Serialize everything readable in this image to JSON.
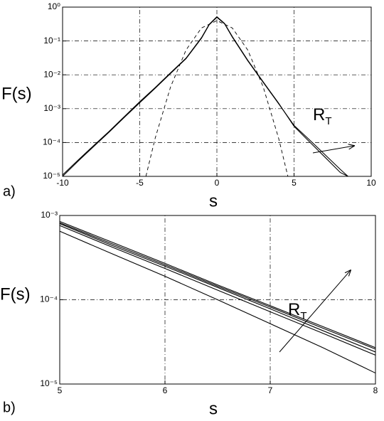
{
  "chart_data": [
    {
      "type": "line",
      "label": "a)",
      "xlabel": "s",
      "ylabel": "F(s)",
      "ylog": true,
      "grid": true,
      "xlim": [
        -10,
        10
      ],
      "xticks": [
        -10,
        -5,
        0,
        5,
        10
      ],
      "ylim": [
        1e-05,
        1
      ],
      "yticks": [
        {
          "value": 1e-05,
          "label": "10⁻⁵"
        },
        {
          "value": 0.0001,
          "label": "10⁻⁴"
        },
        {
          "value": 0.001,
          "label": "10⁻³"
        },
        {
          "value": 0.01,
          "label": "10⁻²"
        },
        {
          "value": 0.1,
          "label": "10⁻¹"
        },
        {
          "value": 1,
          "label": "10⁰"
        }
      ],
      "annotation": {
        "text": "R",
        "subscript": "T"
      },
      "x": [
        -10,
        -9,
        -8,
        -7,
        -6,
        -5,
        -4,
        -3,
        -2,
        -1,
        -0.5,
        0,
        0.5,
        1,
        2,
        3,
        4,
        5,
        6,
        7,
        8,
        8.5
      ],
      "series": [
        {
          "color": "#000000",
          "dash": false,
          "values": [
            1e-05,
            2.8e-05,
            7.5e-05,
            0.0002,
            0.00055,
            0.0015,
            0.004,
            0.011,
            0.03,
            0.12,
            0.3,
            0.5,
            0.32,
            0.13,
            0.026,
            0.006,
            0.0014,
            0.00032,
            0.00012,
            4.4e-05,
            1.6e-05,
            1e-05
          ]
        },
        {
          "color": "#000000",
          "dash": false,
          "values": [
            1.1e-05,
            3e-05,
            8e-05,
            0.00021,
            0.00058,
            0.0016,
            0.0042,
            0.0115,
            0.031,
            0.125,
            0.31,
            0.52,
            0.33,
            0.135,
            0.027,
            0.0062,
            0.00145,
            0.0003,
            0.000105,
            3.7e-05,
            1.3e-05,
            1e-05
          ]
        },
        {
          "color": "#000000",
          "dash": true,
          "x": [
            -4.6,
            -4,
            -3,
            -2,
            -1,
            0,
            1,
            2,
            3,
            4,
            4.6
          ],
          "values": [
            1e-05,
            0.000134,
            0.0044,
            0.054,
            0.242,
            0.399,
            0.242,
            0.054,
            0.0044,
            0.000134,
            1e-05
          ]
        }
      ]
    },
    {
      "type": "line",
      "label": "b)",
      "xlabel": "s",
      "ylabel": "F(s)",
      "ylog": true,
      "grid": true,
      "xlim": [
        5,
        8
      ],
      "xticks": [
        5,
        6,
        7,
        8
      ],
      "ylim": [
        1e-05,
        0.001
      ],
      "yticks": [
        {
          "value": 1e-05,
          "label": "10⁻⁵"
        },
        {
          "value": 0.0001,
          "label": "10⁻⁴"
        },
        {
          "value": 0.001,
          "label": "10⁻³"
        }
      ],
      "annotation": {
        "text": "R",
        "subscript": "T"
      },
      "x": [
        5,
        5.5,
        6,
        6.5,
        7,
        7.5,
        8
      ],
      "series": [
        {
          "color": "#000000",
          "dash": false,
          "values": [
            0.00085,
            0.00048,
            0.00027,
            0.00015,
            8.5e-05,
            4.8e-05,
            2.7e-05
          ]
        },
        {
          "color": "#000000",
          "dash": false,
          "values": [
            0.00082,
            0.00046,
            0.00026,
            0.000145,
            8.2e-05,
            4.6e-05,
            2.6e-05
          ]
        },
        {
          "color": "#000000",
          "dash": false,
          "values": [
            0.0008,
            0.00044,
            0.00025,
            0.00014,
            7.8e-05,
            4.3e-05,
            2.4e-05
          ]
        },
        {
          "color": "#000000",
          "dash": false,
          "values": [
            0.00076,
            0.00042,
            0.000235,
            0.00013,
            7.2e-05,
            4e-05,
            2.2e-05
          ]
        },
        {
          "color": "#000000",
          "dash": false,
          "values": [
            0.00065,
            0.00035,
            0.00019,
            0.0001,
            5.2e-05,
            2.7e-05,
            1.35e-05
          ]
        }
      ]
    }
  ]
}
